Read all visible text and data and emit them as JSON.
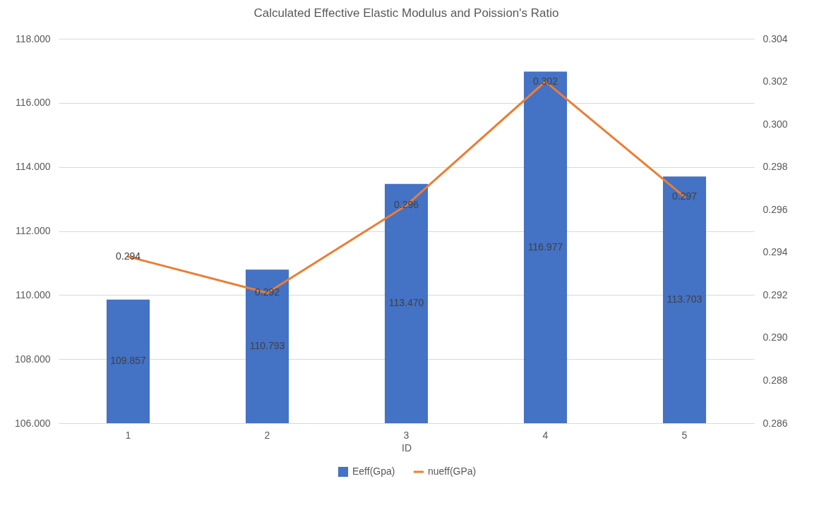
{
  "chart_data": {
    "type": "bar",
    "title": "Calculated Effective Elastic Modulus and Poission's Ratio",
    "xlabel": "ID",
    "categories": [
      "1",
      "2",
      "3",
      "4",
      "5"
    ],
    "series": [
      {
        "name": "Eeff(Gpa)",
        "color": "#4472c4",
        "values": [
          109.857,
          110.793,
          113.47,
          116.977,
          113.703
        ],
        "value_labels": [
          "109.857",
          "110.793",
          "113.470",
          "116.977",
          "113.703"
        ]
      },
      {
        "name": "nueff(GPa)",
        "type": "line",
        "axis": "y2",
        "color": "#ed7d31",
        "values": [
          0.2938,
          0.2921,
          0.2962,
          0.302,
          0.2966
        ],
        "value_labels": [
          "0.294",
          "0.292",
          "0.296",
          "0.302",
          "0.297"
        ]
      }
    ],
    "ylim": [
      106,
      118
    ],
    "yticks": [
      {
        "value": 106,
        "label": "106.000"
      },
      {
        "value": 108,
        "label": "108.000"
      },
      {
        "value": 110,
        "label": "110.000"
      },
      {
        "value": 112,
        "label": "112.000"
      },
      {
        "value": 114,
        "label": "114.000"
      },
      {
        "value": 116,
        "label": "116.000"
      },
      {
        "value": 118,
        "label": "118.000"
      }
    ],
    "y2lim": [
      0.286,
      0.304
    ],
    "y2ticks": [
      {
        "value": 0.286,
        "label": "0.286"
      },
      {
        "value": 0.288,
        "label": "0.288"
      },
      {
        "value": 0.29,
        "label": "0.290"
      },
      {
        "value": 0.292,
        "label": "0.292"
      },
      {
        "value": 0.294,
        "label": "0.294"
      },
      {
        "value": 0.296,
        "label": "0.296"
      },
      {
        "value": 0.298,
        "label": "0.298"
      },
      {
        "value": 0.3,
        "label": "0.300"
      },
      {
        "value": 0.302,
        "label": "0.302"
      },
      {
        "value": 0.304,
        "label": "0.304"
      }
    ],
    "grid": "y",
    "legend": "bottom"
  }
}
